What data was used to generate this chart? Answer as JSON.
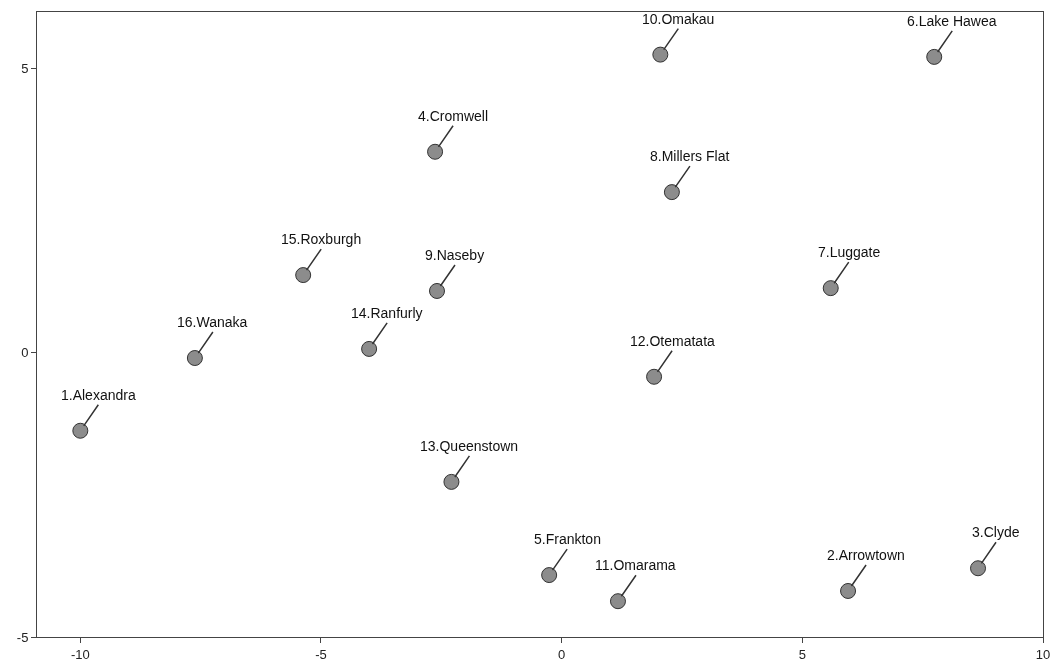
{
  "chart_data": {
    "type": "scatter",
    "series": [
      {
        "name": "1.Alexandra",
        "color": "#8c8c8c",
        "x": [
          -10.0
        ],
        "values": [
          -1.37
        ]
      },
      {
        "name": "2.Arrowtown",
        "color": "#8c8c8c",
        "x": [
          5.95
        ],
        "values": [
          -4.19
        ]
      },
      {
        "name": "3.Clyde",
        "color": "#8c8c8c",
        "x": [
          8.65
        ],
        "values": [
          -3.79
        ]
      },
      {
        "name": "4.Cromwell",
        "color": "#8c8c8c",
        "x": [
          -2.63
        ],
        "values": [
          3.54
        ]
      },
      {
        "name": "5.Frankton",
        "color": "#8c8c8c",
        "x": [
          -0.26
        ],
        "values": [
          -3.91
        ]
      },
      {
        "name": "6.Lake Hawea",
        "color": "#8c8c8c",
        "x": [
          7.74
        ],
        "values": [
          5.21
        ]
      },
      {
        "name": "7.Luggate",
        "color": "#8c8c8c",
        "x": [
          5.59
        ],
        "values": [
          1.14
        ]
      },
      {
        "name": "8.Millers Flat",
        "color": "#8c8c8c",
        "x": [
          2.29
        ],
        "values": [
          2.83
        ]
      },
      {
        "name": "9.Naseby",
        "color": "#8c8c8c",
        "x": [
          -2.59
        ],
        "values": [
          1.09
        ]
      },
      {
        "name": "10.Omakau",
        "color": "#8c8c8c",
        "x": [
          2.05
        ],
        "values": [
          5.25
        ]
      },
      {
        "name": "11.Omarama",
        "color": "#8c8c8c",
        "x": [
          1.17
        ],
        "values": [
          -4.37
        ]
      },
      {
        "name": "12.Otematata",
        "color": "#8c8c8c",
        "x": [
          1.92
        ],
        "values": [
          -0.42
        ]
      },
      {
        "name": "13.Queenstown",
        "color": "#8c8c8c",
        "x": [
          -2.29
        ],
        "values": [
          -2.27
        ]
      },
      {
        "name": "14.Ranfurly",
        "color": "#8c8c8c",
        "x": [
          -4.0
        ],
        "values": [
          0.07
        ]
      },
      {
        "name": "15.Roxburgh",
        "color": "#8c8c8c",
        "x": [
          -5.37
        ],
        "values": [
          1.37
        ]
      },
      {
        "name": "16.Wanaka",
        "color": "#8c8c8c",
        "x": [
          -7.62
        ],
        "values": [
          -0.09
        ]
      }
    ],
    "marker": "circle",
    "grid": false,
    "xlim": [
      -10.9,
      10
    ],
    "xticks": [
      -10,
      -5,
      0,
      5,
      10
    ],
    "ylim": [
      -5,
      6
    ],
    "yticks": [
      -5,
      0,
      5
    ]
  }
}
